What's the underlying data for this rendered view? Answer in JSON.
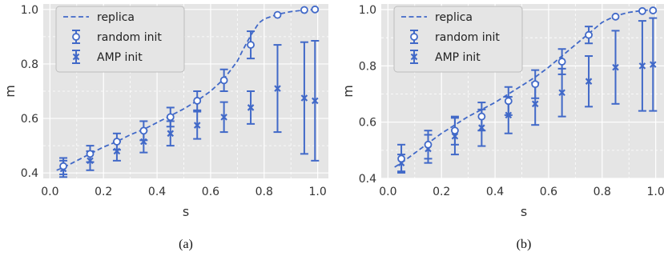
{
  "colors": {
    "plot_bg": "#e5e5e5",
    "grid": "#ffffff",
    "series": "#4169c8",
    "marker_fill": "#ffffff"
  },
  "chart_data": [
    {
      "type": "scatter",
      "caption": "(a)",
      "xlabel": "s",
      "ylabel": "m",
      "xlim": [
        0.0,
        1.0
      ],
      "ylim": [
        0.38,
        1.02
      ],
      "xticks": [
        "0.0",
        "0.2",
        "0.4",
        "0.6",
        "0.8",
        "1.0"
      ],
      "yticks": [
        "0.4",
        "0.6",
        "0.8",
        "1.0"
      ],
      "grid": true,
      "legend_position": "top-left",
      "series": [
        {
          "name": "replica",
          "kind": "line",
          "style": "dashed",
          "x": [
            0.025,
            0.05,
            0.1,
            0.15,
            0.2,
            0.25,
            0.3,
            0.35,
            0.4,
            0.45,
            0.5,
            0.55,
            0.6,
            0.65,
            0.7,
            0.72,
            0.75,
            0.78,
            0.8,
            0.85,
            0.9,
            0.95,
            1.0
          ],
          "y": [
            0.41,
            0.42,
            0.445,
            0.47,
            0.495,
            0.515,
            0.54,
            0.56,
            0.585,
            0.61,
            0.635,
            0.665,
            0.7,
            0.745,
            0.81,
            0.85,
            0.905,
            0.95,
            0.965,
            0.982,
            0.992,
            0.998,
            1.0
          ]
        },
        {
          "name": "random init",
          "kind": "errorbar",
          "marker": "o",
          "x": [
            0.05,
            0.15,
            0.25,
            0.35,
            0.45,
            0.55,
            0.65,
            0.75,
            0.85,
            0.95,
            0.99
          ],
          "y": [
            0.425,
            0.47,
            0.515,
            0.555,
            0.605,
            0.665,
            0.74,
            0.87,
            0.98,
            0.998,
            1.0
          ],
          "err": [
            0.03,
            0.03,
            0.03,
            0.035,
            0.035,
            0.035,
            0.04,
            0.05,
            0.0,
            0.0,
            0.0
          ]
        },
        {
          "name": "AMP init",
          "kind": "errorbar",
          "marker": "x",
          "x": [
            0.05,
            0.15,
            0.25,
            0.35,
            0.45,
            0.55,
            0.65,
            0.75,
            0.85,
            0.95,
            0.99
          ],
          "y": [
            0.415,
            0.445,
            0.48,
            0.515,
            0.545,
            0.575,
            0.605,
            0.64,
            0.71,
            0.675,
            0.665
          ],
          "err": [
            0.03,
            0.035,
            0.035,
            0.04,
            0.045,
            0.05,
            0.055,
            0.06,
            0.16,
            0.205,
            0.22
          ]
        }
      ]
    },
    {
      "type": "scatter",
      "caption": "(b)",
      "xlabel": "s",
      "ylabel": "m",
      "xlim": [
        0.0,
        1.0
      ],
      "ylim": [
        0.4,
        1.02
      ],
      "xticks": [
        "0.0",
        "0.2",
        "0.4",
        "0.6",
        "0.8",
        "1.0"
      ],
      "yticks": [
        "0.4",
        "0.6",
        "0.8",
        "1.0"
      ],
      "grid": true,
      "legend_position": "top-left",
      "series": [
        {
          "name": "replica",
          "kind": "line",
          "style": "dashed",
          "x": [
            0.025,
            0.05,
            0.1,
            0.15,
            0.2,
            0.25,
            0.3,
            0.35,
            0.4,
            0.45,
            0.5,
            0.55,
            0.6,
            0.65,
            0.7,
            0.75,
            0.8,
            0.85,
            0.9,
            0.95,
            1.0
          ],
          "y": [
            0.44,
            0.455,
            0.49,
            0.525,
            0.56,
            0.59,
            0.62,
            0.645,
            0.67,
            0.7,
            0.73,
            0.76,
            0.795,
            0.835,
            0.875,
            0.915,
            0.955,
            0.978,
            0.99,
            0.997,
            1.0
          ],
          "err_none": true
        },
        {
          "name": "random init",
          "kind": "errorbar",
          "marker": "o",
          "x": [
            0.05,
            0.15,
            0.25,
            0.35,
            0.45,
            0.55,
            0.65,
            0.75,
            0.85,
            0.95,
            0.99
          ],
          "y": [
            0.47,
            0.52,
            0.57,
            0.62,
            0.675,
            0.735,
            0.815,
            0.91,
            0.975,
            0.995,
            0.997
          ],
          "err": [
            0.05,
            0.05,
            0.05,
            0.05,
            0.05,
            0.05,
            0.045,
            0.03,
            0.0,
            0.0,
            0.0
          ]
        },
        {
          "name": "AMP init",
          "kind": "errorbar",
          "marker": "x",
          "x": [
            0.05,
            0.15,
            0.25,
            0.35,
            0.45,
            0.55,
            0.65,
            0.75,
            0.85,
            0.95,
            0.99
          ],
          "y": [
            0.455,
            0.505,
            0.55,
            0.58,
            0.625,
            0.665,
            0.705,
            0.745,
            0.795,
            0.8,
            0.805
          ],
          "err": [
            0.03,
            0.05,
            0.065,
            0.065,
            0.065,
            0.075,
            0.085,
            0.09,
            0.13,
            0.16,
            0.165
          ]
        }
      ]
    }
  ]
}
